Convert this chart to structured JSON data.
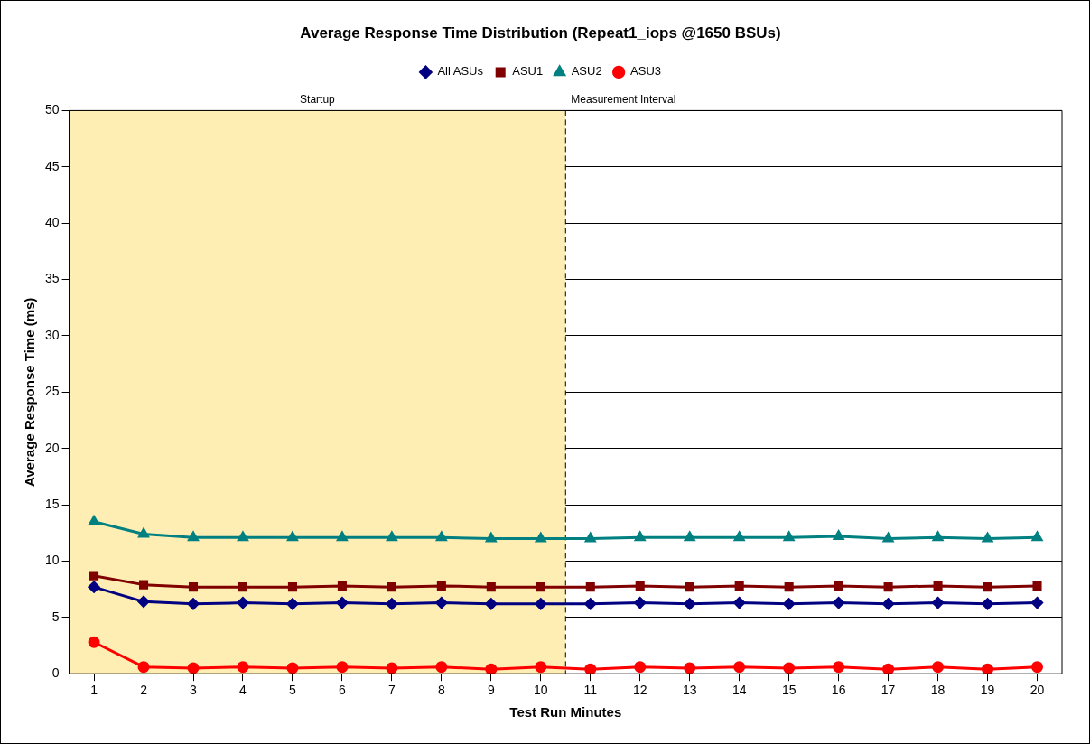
{
  "chart_data": {
    "type": "line",
    "title": "Average Response Time Distribution (Repeat1_iops @1650 BSUs)",
    "xlabel": "Test Run Minutes",
    "ylabel": "Average Response Time (ms)",
    "x": [
      1,
      2,
      3,
      4,
      5,
      6,
      7,
      8,
      9,
      10,
      11,
      12,
      13,
      14,
      15,
      16,
      17,
      18,
      19,
      20
    ],
    "xlim": [
      0.5,
      20.5
    ],
    "xticks": [
      1,
      2,
      3,
      4,
      5,
      6,
      7,
      8,
      9,
      10,
      11,
      12,
      13,
      14,
      15,
      16,
      17,
      18,
      19,
      20
    ],
    "ylim": [
      0,
      50
    ],
    "yticks": [
      0,
      5,
      10,
      15,
      20,
      25,
      30,
      35,
      40,
      45,
      50
    ],
    "grid": "y",
    "legend": "top",
    "line_style": "solid",
    "series": [
      {
        "name": "All ASUs",
        "color": "#000080",
        "marker": "diamond",
        "values": [
          7.7,
          6.4,
          6.2,
          6.3,
          6.2,
          6.3,
          6.2,
          6.3,
          6.2,
          6.2,
          6.2,
          6.3,
          6.2,
          6.3,
          6.2,
          6.3,
          6.2,
          6.3,
          6.2,
          6.3
        ]
      },
      {
        "name": "ASU1",
        "color": "#800000",
        "marker": "square",
        "values": [
          8.7,
          7.9,
          7.7,
          7.7,
          7.7,
          7.8,
          7.7,
          7.8,
          7.7,
          7.7,
          7.7,
          7.8,
          7.7,
          7.8,
          7.7,
          7.8,
          7.7,
          7.8,
          7.7,
          7.8
        ]
      },
      {
        "name": "ASU2",
        "color": "#008080",
        "marker": "triangle",
        "values": [
          13.5,
          12.4,
          12.1,
          12.1,
          12.1,
          12.1,
          12.1,
          12.1,
          12.0,
          12.0,
          12.0,
          12.1,
          12.1,
          12.1,
          12.1,
          12.2,
          12.0,
          12.1,
          12.0,
          12.1
        ]
      },
      {
        "name": "ASU3",
        "color": "#ff0000",
        "marker": "circle",
        "values": [
          2.8,
          0.6,
          0.5,
          0.6,
          0.5,
          0.6,
          0.5,
          0.6,
          0.4,
          0.6,
          0.4,
          0.6,
          0.5,
          0.6,
          0.5,
          0.6,
          0.4,
          0.6,
          0.4,
          0.6
        ]
      }
    ],
    "bands": [
      {
        "axis": "x",
        "from": 0.5,
        "to": 10.5,
        "label": "Startup",
        "color": "#ffeeb4"
      }
    ],
    "ref_lines": [
      {
        "axis": "x",
        "value": 10.5,
        "label": "Measurement Interval",
        "color": "#000000",
        "line_style": "dashed"
      }
    ]
  }
}
